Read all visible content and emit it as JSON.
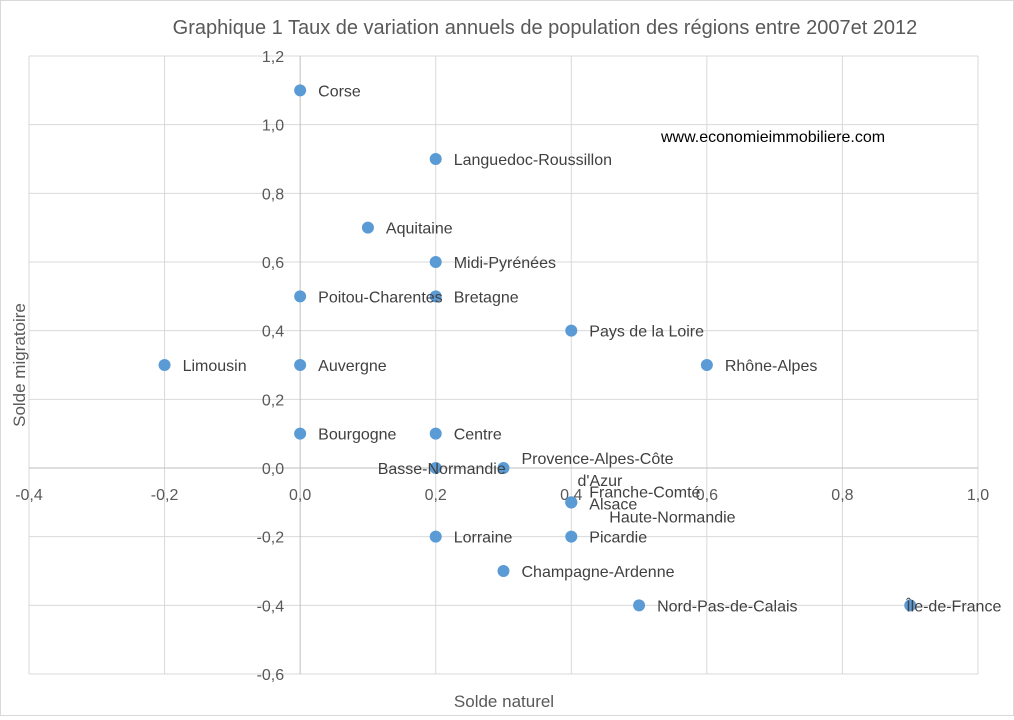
{
  "chart_data": {
    "type": "scatter",
    "title": "Graphique 1 Taux de variation annuels de population des régions entre 2007et 2012",
    "xlabel": "Solde naturel",
    "ylabel": "Solde migratoire",
    "xlim": [
      -0.4,
      1.0
    ],
    "ylim": [
      -0.6,
      1.2
    ],
    "x_ticks": [
      "-0,4",
      "-0,2",
      "0,0",
      "0,2",
      "0,4",
      "0,6",
      "0,8",
      "1,0"
    ],
    "y_ticks": [
      "-0,6",
      "-0,4",
      "-0,2",
      "0,0",
      "0,2",
      "0,4",
      "0,6",
      "0,8",
      "1,0",
      "1,2"
    ],
    "grid": true,
    "marker_color": "#5b9bd5",
    "annotation": "www.economieimmobiliere.com",
    "points": [
      {
        "label": "Corse",
        "x": 0.0,
        "y": 1.1
      },
      {
        "label": "Languedoc-Roussillon",
        "x": 0.2,
        "y": 0.9
      },
      {
        "label": "Aquitaine",
        "x": 0.1,
        "y": 0.7
      },
      {
        "label": "Midi-Pyrénées",
        "x": 0.2,
        "y": 0.6
      },
      {
        "label": "Poitou-Charentes",
        "x": 0.0,
        "y": 0.5
      },
      {
        "label": "Bretagne",
        "x": 0.2,
        "y": 0.5
      },
      {
        "label": "Pays de la Loire",
        "x": 0.4,
        "y": 0.4
      },
      {
        "label": "Limousin",
        "x": -0.2,
        "y": 0.3
      },
      {
        "label": "Auvergne",
        "x": 0.0,
        "y": 0.3
      },
      {
        "label": "Rhône-Alpes",
        "x": 0.6,
        "y": 0.3
      },
      {
        "label": "Bourgogne",
        "x": 0.0,
        "y": 0.1
      },
      {
        "label": "Centre",
        "x": 0.2,
        "y": 0.1
      },
      {
        "label": "Basse-Normandie",
        "x": 0.2,
        "y": 0.0
      },
      {
        "label": "Provence-Alpes-Côte d'Azur",
        "x": 0.3,
        "y": 0.0
      },
      {
        "label": "Franche-Comté",
        "x": 0.4,
        "y": -0.1
      },
      {
        "label": "Alsace",
        "x": 0.4,
        "y": -0.1
      },
      {
        "label": "Haute-Normandie",
        "x": 0.4,
        "y": -0.1
      },
      {
        "label": "Lorraine",
        "x": 0.2,
        "y": -0.2
      },
      {
        "label": "Picardie",
        "x": 0.4,
        "y": -0.2
      },
      {
        "label": "Champagne-Ardenne",
        "x": 0.3,
        "y": -0.3
      },
      {
        "label": "Nord-Pas-de-Calais",
        "x": 0.5,
        "y": -0.4
      },
      {
        "label": "Île-de-France",
        "x": 0.9,
        "y": -0.4
      }
    ]
  }
}
